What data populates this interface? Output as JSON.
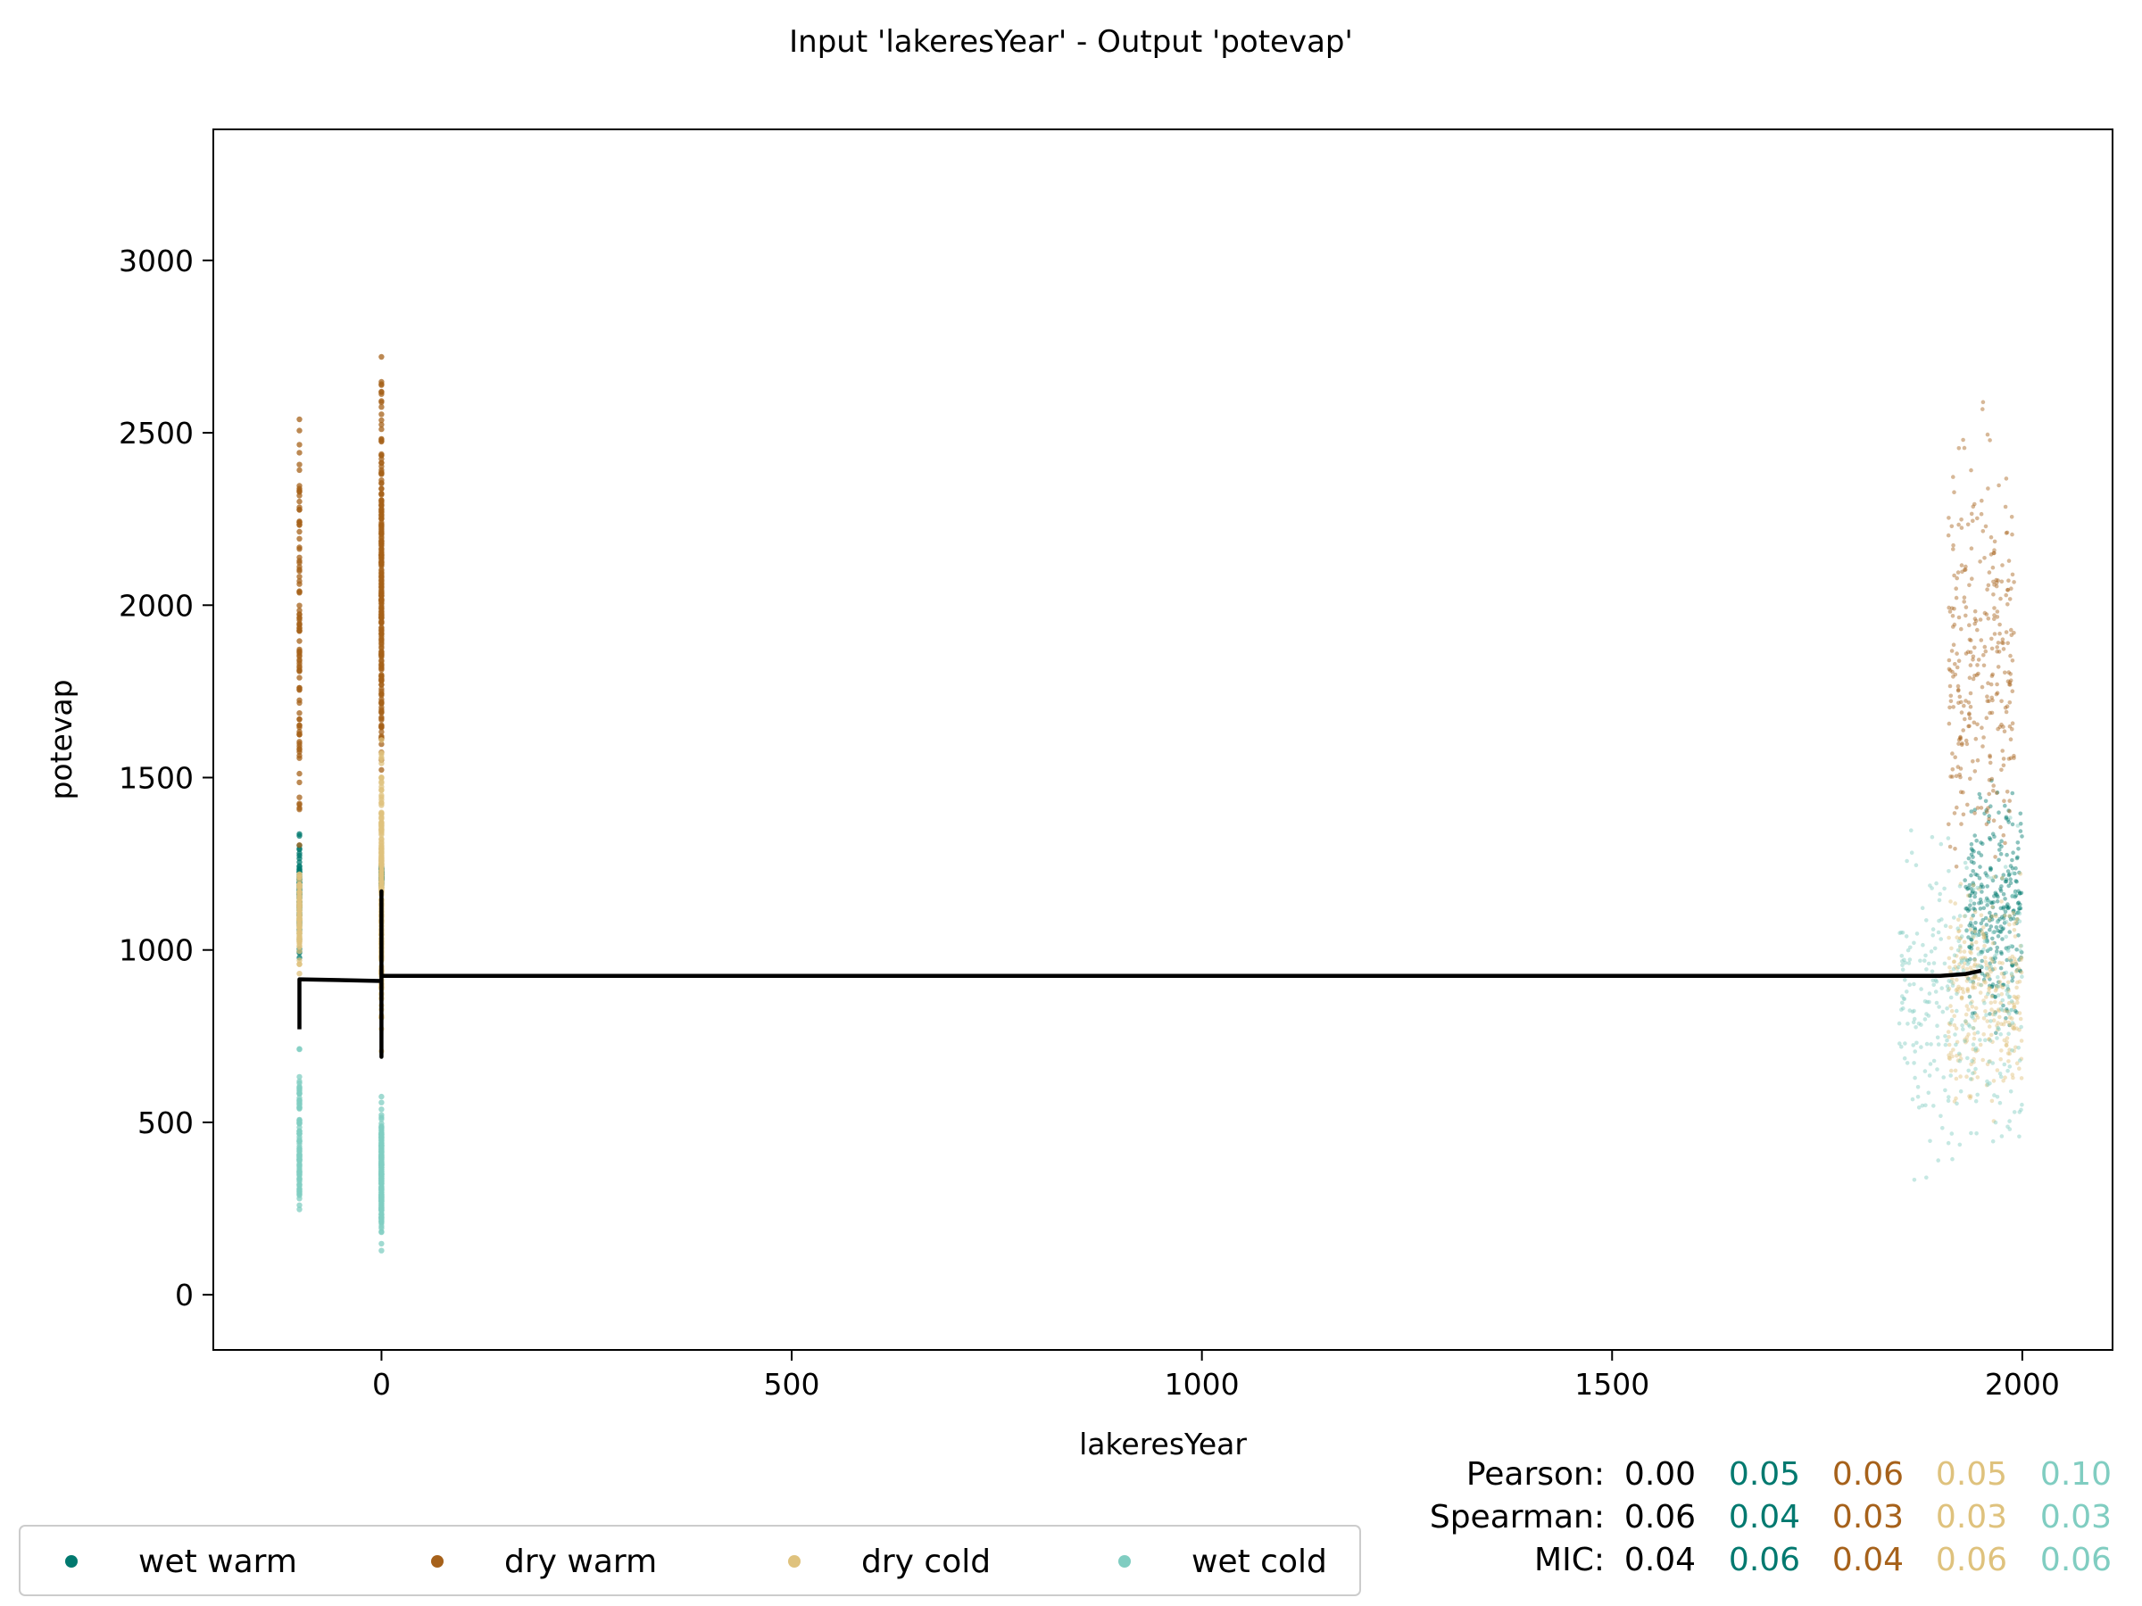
{
  "chart_data": {
    "type": "scatter",
    "title": "Input 'lakeresYear' - Output 'potevap'",
    "xlabel": "lakeresYear",
    "ylabel": "potevap",
    "xlim": [
      -205,
      2110
    ],
    "ylim": [
      -160,
      3380
    ],
    "xticks": [
      0,
      500,
      1000,
      1500,
      2000
    ],
    "xtick_labels": [
      "0",
      "500",
      "1000",
      "1500",
      "2000"
    ],
    "yticks": [
      0,
      500,
      1000,
      1500,
      2000,
      2500,
      3000
    ],
    "ytick_labels": [
      "0",
      "500",
      "1000",
      "1500",
      "2000",
      "2500",
      "3000"
    ],
    "grid": false,
    "legend_position": "bottom-left",
    "series": [
      {
        "name": "wet warm",
        "color": "#01796f",
        "clusters": [
          {
            "x": -100,
            "y_range": [
              900,
              1400
            ]
          },
          {
            "x": 0,
            "y_range": [
              1180,
              1250
            ]
          },
          {
            "x_range": [
              1930,
              2000
            ],
            "y_range": [
              700,
              1550
            ]
          }
        ]
      },
      {
        "name": "dry warm",
        "color": "#a6611a",
        "clusters": [
          {
            "x": -100,
            "y_range": [
              950,
              2800
            ]
          },
          {
            "x": 0,
            "y_range": [
              1250,
              2850
            ]
          },
          {
            "x_range": [
              1910,
              1990
            ],
            "y_range": [
              1000,
              2700
            ]
          }
        ]
      },
      {
        "name": "dry cold",
        "color": "#dfc27d",
        "clusters": [
          {
            "x": -100,
            "y_range": [
              900,
              1300
            ]
          },
          {
            "x": 0,
            "y_range": [
              620,
              1700
            ]
          },
          {
            "x_range": [
              1910,
              2000
            ],
            "y_range": [
              450,
              1300
            ]
          }
        ]
      },
      {
        "name": "wet cold",
        "color": "#80cdc1",
        "clusters": [
          {
            "x": -100,
            "y_range": [
              150,
              760
            ]
          },
          {
            "x": 0,
            "y_range": [
              80,
              610
            ]
          },
          {
            "x_range": [
              1850,
              2000
            ],
            "y_range": [
              200,
              1500
            ]
          }
        ]
      }
    ],
    "trend_line": {
      "color": "#000000",
      "points": [
        [
          -100,
          770
        ],
        [
          -100,
          915
        ],
        [
          0,
          910
        ],
        [
          0,
          690
        ],
        [
          0,
          1170
        ],
        [
          0,
          925
        ],
        [
          500,
          925
        ],
        [
          1000,
          925
        ],
        [
          1500,
          925
        ],
        [
          1900,
          925
        ],
        [
          1930,
          930
        ],
        [
          1950,
          940
        ]
      ]
    },
    "stats": {
      "rows": [
        {
          "label": "Pearson:",
          "values": [
            "0.00",
            "0.05",
            "0.06",
            "0.05",
            "0.10"
          ]
        },
        {
          "label": "Spearman:",
          "values": [
            "0.06",
            "0.04",
            "0.03",
            "0.03",
            "0.03"
          ]
        },
        {
          "label": "MIC:",
          "values": [
            "0.04",
            "0.06",
            "0.04",
            "0.06",
            "0.06"
          ]
        }
      ],
      "colors": [
        "#000000",
        "#01796f",
        "#a6611a",
        "#dfc27d",
        "#80cdc1"
      ]
    }
  }
}
